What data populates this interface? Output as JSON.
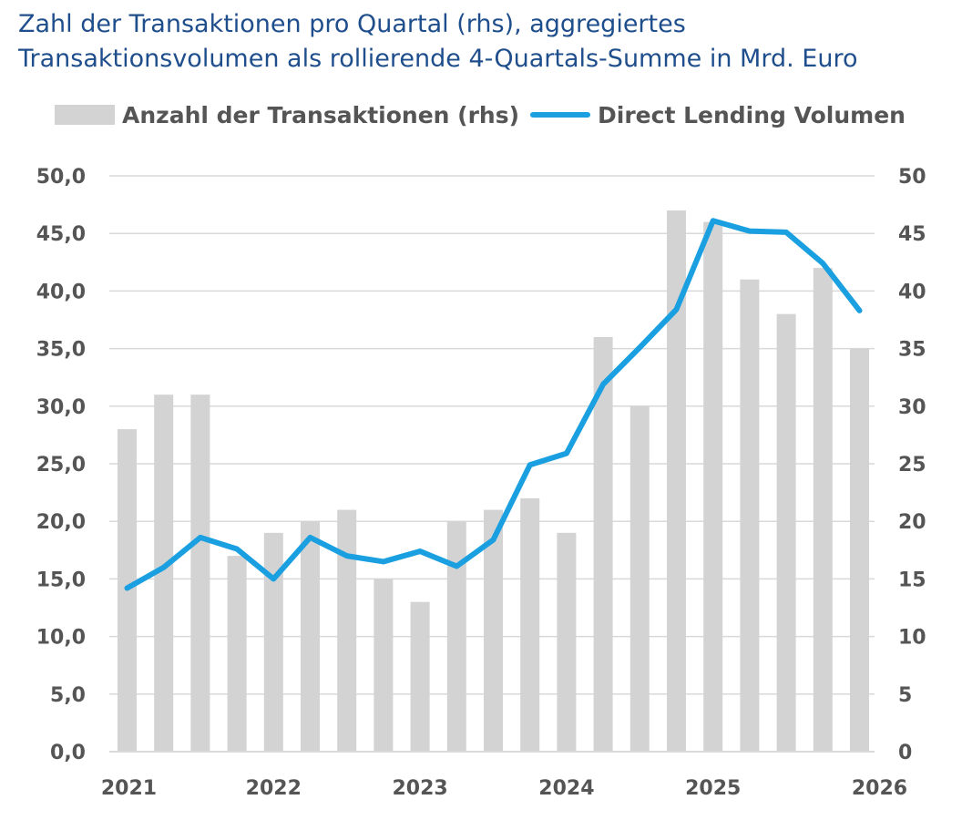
{
  "title_lines": [
    "Zahl der Transaktionen pro Quartal (rhs), aggregiertes",
    "Transaktionsvolumen als rollierende 4-Quartals-Summe in Mrd. Euro"
  ],
  "colors": {
    "bar": "#d3d3d3",
    "line": "#1aa0e0",
    "grid": "#d9d9d9",
    "title": "#1f4e8c",
    "text": "#555555"
  },
  "chart_data": {
    "type": "bar",
    "x_axis_labels": [
      "2021",
      "2022",
      "2023",
      "2024",
      "2025",
      "2026"
    ],
    "x_label_quarter_index": [
      0,
      4,
      8,
      12,
      16,
      20
    ],
    "quarters": 21,
    "left_axis": {
      "range": [
        0,
        50
      ],
      "ticks": [
        "0,0",
        "5,0",
        "10,0",
        "15,0",
        "20,0",
        "25,0",
        "30,0",
        "35,0",
        "40,0",
        "45,0",
        "50,0"
      ]
    },
    "right_axis": {
      "range": [
        0,
        50
      ],
      "ticks": [
        "0",
        "5",
        "10",
        "15",
        "20",
        "25",
        "30",
        "35",
        "40",
        "45",
        "50"
      ]
    },
    "grid": true,
    "legend_position": "top",
    "series": [
      {
        "name": "Anzahl der Transaktionen (rhs)",
        "type": "bar",
        "axis": "right",
        "values": [
          28,
          31,
          31,
          17,
          19,
          20,
          21,
          15,
          13,
          20,
          21,
          22,
          19,
          36,
          30,
          47,
          46,
          41,
          38,
          42,
          35
        ]
      },
      {
        "name": "Direct Lending Volumen",
        "type": "line",
        "axis": "left",
        "values": [
          14.2,
          16.0,
          18.6,
          17.6,
          15.0,
          18.6,
          17.0,
          16.5,
          17.4,
          16.1,
          18.4,
          24.9,
          25.9,
          31.9,
          35.1,
          38.4,
          46.1,
          45.2,
          45.1,
          42.4,
          38.3
        ]
      }
    ]
  }
}
